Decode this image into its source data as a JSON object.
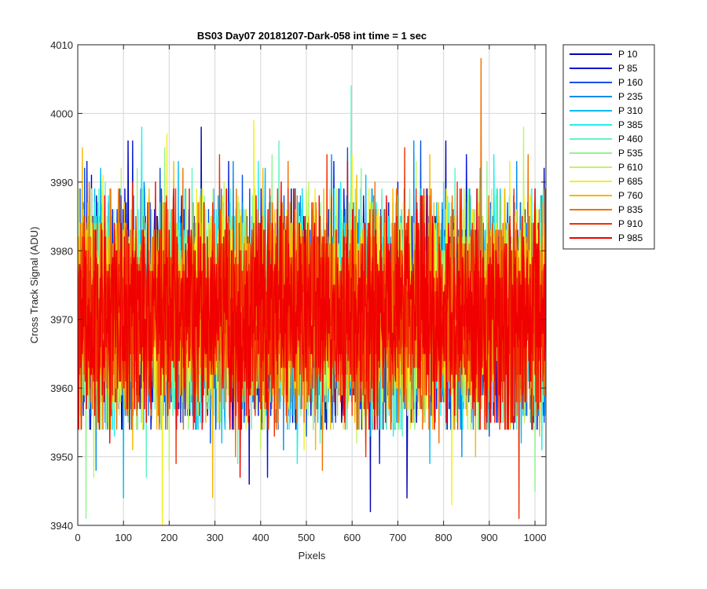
{
  "chart_data": {
    "type": "line",
    "title": "BS03 Day07 20181207-Dark-058 int time = 1 sec",
    "xlabel": "Pixels",
    "ylabel": "Cross Track Signal (ADU)",
    "xlim": [
      0,
      1024
    ],
    "ylim": [
      3940,
      4010
    ],
    "x_ticks": [
      0,
      100,
      200,
      300,
      400,
      500,
      600,
      700,
      800,
      900,
      1000
    ],
    "y_ticks": [
      3940,
      3950,
      3960,
      3970,
      3980,
      3990,
      4000,
      4010
    ],
    "grid": true,
    "legend_position": "outside-top-right",
    "x_points": 1024,
    "baseline": 3971,
    "series": [
      {
        "name": "P 10",
        "color": "#0000b4",
        "spikes": [
          [
            30,
            3991
          ],
          [
            110,
            3996
          ],
          [
            165,
            3962
          ],
          [
            270,
            3998
          ],
          [
            375,
            3946
          ],
          [
            470,
            3955
          ],
          [
            640,
            3942
          ],
          [
            720,
            3944
          ],
          [
            805,
            3996
          ],
          [
            1020,
            3992
          ]
        ]
      },
      {
        "name": "P 85",
        "color": "#0016d6",
        "spikes": [
          [
            20,
            3993
          ],
          [
            120,
            3996
          ],
          [
            225,
            3955
          ],
          [
            330,
            3993
          ],
          [
            415,
            3947
          ],
          [
            560,
            3993
          ],
          [
            660,
            3949
          ],
          [
            700,
            3990
          ],
          [
            850,
            3994
          ],
          [
            1005,
            3954
          ]
        ]
      },
      {
        "name": "P 160",
        "color": "#0050e8",
        "spikes": [
          [
            15,
            3992
          ],
          [
            100,
            3953
          ],
          [
            180,
            3992
          ],
          [
            290,
            3952
          ],
          [
            360,
            3991
          ],
          [
            500,
            3953
          ],
          [
            590,
            3995
          ],
          [
            750,
            3996
          ],
          [
            900,
            3953
          ],
          [
            990,
            3955
          ]
        ]
      },
      {
        "name": "P 235",
        "color": "#008cf0",
        "spikes": [
          [
            40,
            3948
          ],
          [
            145,
            3990
          ],
          [
            240,
            3956
          ],
          [
            340,
            3993
          ],
          [
            450,
            3951
          ],
          [
            555,
            3994
          ],
          [
            640,
            3953
          ],
          [
            735,
            3996
          ],
          [
            840,
            3950
          ],
          [
            960,
            3993
          ]
        ]
      },
      {
        "name": "P 310",
        "color": "#00bcf5",
        "spikes": [
          [
            50,
            3992
          ],
          [
            100,
            3944
          ],
          [
            220,
            3993
          ],
          [
            315,
            3952
          ],
          [
            410,
            3992
          ],
          [
            525,
            3955
          ],
          [
            630,
            3991
          ],
          [
            770,
            3949
          ],
          [
            880,
            3992
          ],
          [
            970,
            3952
          ]
        ]
      },
      {
        "name": "P 385",
        "color": "#20eef0",
        "spikes": [
          [
            80,
            3953
          ],
          [
            140,
            3998
          ],
          [
            260,
            3954
          ],
          [
            395,
            3993
          ],
          [
            480,
            3949
          ],
          [
            575,
            3990
          ],
          [
            690,
            3953
          ],
          [
            800,
            3990
          ],
          [
            910,
            3994
          ],
          [
            1015,
            3951
          ]
        ]
      },
      {
        "name": "P 460",
        "color": "#60f5c0",
        "spikes": [
          [
            60,
            3990
          ],
          [
            150,
            3947
          ],
          [
            250,
            3992
          ],
          [
            350,
            3949
          ],
          [
            440,
            3996
          ],
          [
            530,
            3952
          ],
          [
            598,
            4004
          ],
          [
            710,
            3953
          ],
          [
            825,
            3992
          ],
          [
            930,
            3955
          ]
        ]
      },
      {
        "name": "P 535",
        "color": "#90f590",
        "spikes": [
          [
            18,
            3941
          ],
          [
            130,
            3992
          ],
          [
            190,
            3995
          ],
          [
            305,
            3955
          ],
          [
            425,
            3994
          ],
          [
            515,
            3954
          ],
          [
            620,
            3992
          ],
          [
            760,
            3955
          ],
          [
            895,
            3993
          ],
          [
            1000,
            3945
          ]
        ]
      },
      {
        "name": "P 610",
        "color": "#c0f560",
        "spikes": [
          [
            35,
            3947
          ],
          [
            95,
            3992
          ],
          [
            200,
            3948
          ],
          [
            320,
            3990
          ],
          [
            400,
            3951
          ],
          [
            505,
            3990
          ],
          [
            610,
            3952
          ],
          [
            740,
            3993
          ],
          [
            860,
            3954
          ],
          [
            975,
            3998
          ]
        ]
      },
      {
        "name": "P 685",
        "color": "#f0f020",
        "spikes": [
          [
            55,
            3991
          ],
          [
            185,
            3940
          ],
          [
            195,
            3997
          ],
          [
            295,
            3954
          ],
          [
            385,
            3999
          ],
          [
            495,
            3951
          ],
          [
            600,
            3994
          ],
          [
            685,
            3955
          ],
          [
            818,
            3943
          ],
          [
            945,
            3993
          ]
        ]
      },
      {
        "name": "P 760",
        "color": "#f5b800",
        "spikes": [
          [
            10,
            3995
          ],
          [
            120,
            3951
          ],
          [
            210,
            3993
          ],
          [
            295,
            3944
          ],
          [
            405,
            3992
          ],
          [
            520,
            3951
          ],
          [
            610,
            3991
          ],
          [
            770,
            3994
          ],
          [
            870,
            3950
          ],
          [
            1010,
            3953
          ]
        ]
      },
      {
        "name": "P 835",
        "color": "#f07000",
        "spikes": [
          [
            25,
            3990
          ],
          [
            160,
            3956
          ],
          [
            230,
            3992
          ],
          [
            345,
            3950
          ],
          [
            460,
            3993
          ],
          [
            535,
            3948
          ],
          [
            650,
            3990
          ],
          [
            790,
            3952
          ],
          [
            882,
            4008
          ],
          [
            985,
            3994
          ]
        ]
      },
      {
        "name": "P 910",
        "color": "#f03000",
        "spikes": [
          [
            45,
            3955
          ],
          [
            120,
            3990
          ],
          [
            215,
            3949
          ],
          [
            310,
            3994
          ],
          [
            430,
            3953
          ],
          [
            545,
            3994
          ],
          [
            630,
            3950
          ],
          [
            715,
            3995
          ],
          [
            830,
            3990
          ],
          [
            965,
            3941
          ]
        ]
      },
      {
        "name": "P 985",
        "color": "#f00000",
        "spikes": [
          [
            70,
            3952
          ],
          [
            170,
            3990
          ],
          [
            255,
            3955
          ],
          [
            355,
            3947
          ],
          [
            445,
            3990
          ],
          [
            590,
            3993
          ],
          [
            655,
            3954
          ],
          [
            780,
            3954
          ],
          [
            895,
            3955
          ],
          [
            1000,
            3989
          ]
        ]
      }
    ]
  }
}
